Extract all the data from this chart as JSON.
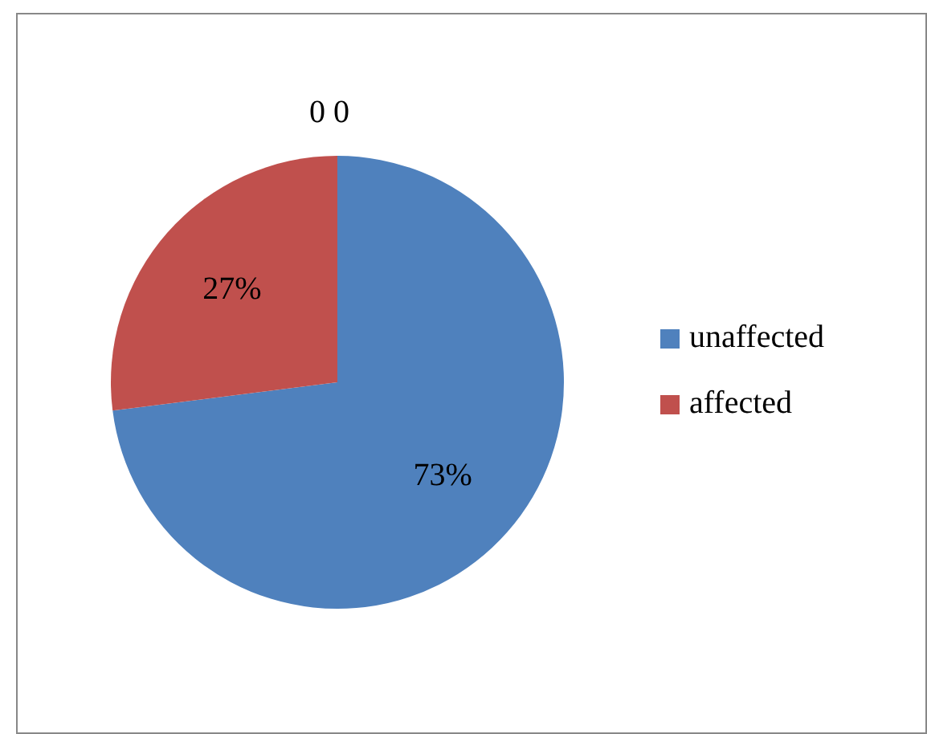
{
  "chart_data": {
    "type": "pie",
    "title": "0 0",
    "categories": [
      "unaffected",
      "affected"
    ],
    "values": [
      73,
      27
    ],
    "colors": [
      "#4f81bd",
      "#c0504d"
    ],
    "value_labels": [
      "73%",
      "27%"
    ],
    "legend": "right"
  }
}
